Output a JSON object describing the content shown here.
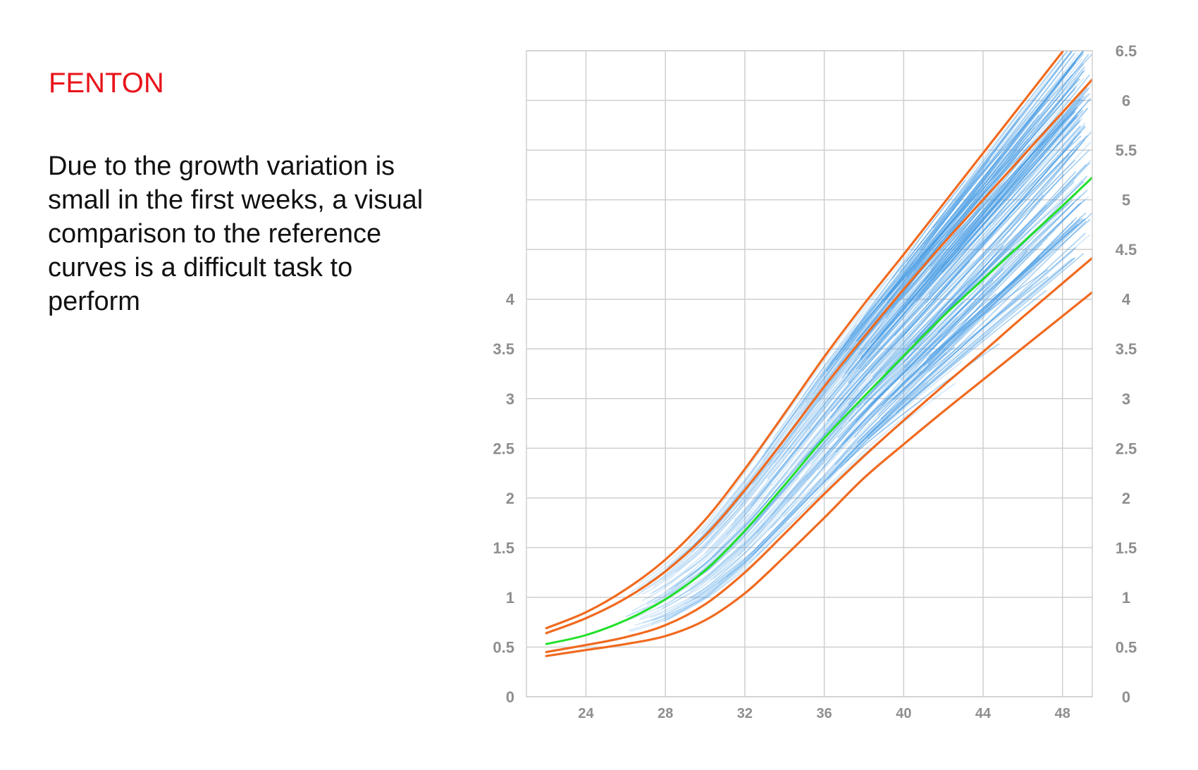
{
  "slide": {
    "title": "FENTON",
    "description": "Due to the growth variation is small in the first weeks, a visual comparison to the reference curves is a difficult task to perform"
  },
  "colors": {
    "title": "#e8141b",
    "reference_curve": "#f06a1f",
    "median_curve": "#22e02a",
    "patient_curves": "#3d97e3",
    "grid": "#cfcfcf",
    "tick_label": "#8e8e8e"
  },
  "chart_data": {
    "type": "line",
    "title": "",
    "xlabel": "",
    "ylabel": "",
    "xlim": [
      21,
      49.5
    ],
    "ylim": [
      0,
      6.5
    ],
    "x_ticks": [
      24,
      28,
      32,
      36,
      40,
      44,
      48
    ],
    "y_ticks_left": [
      0,
      0.5,
      1,
      1.5,
      2,
      2.5,
      3,
      3.5,
      4
    ],
    "y_ticks_right": [
      0,
      0.5,
      1,
      1.5,
      2,
      2.5,
      3,
      3.5,
      4,
      4.5,
      5,
      5.5,
      6,
      6.5
    ],
    "grid": true,
    "legend": "none",
    "x": [
      22,
      24,
      26,
      28,
      30,
      32,
      34,
      36,
      38,
      40,
      42,
      44,
      46,
      48,
      50
    ],
    "series": [
      {
        "role": "reference",
        "values": [
          0.69,
          0.85,
          1.08,
          1.38,
          1.78,
          2.29,
          2.85,
          3.42,
          3.95,
          4.45,
          4.96,
          5.47,
          5.98,
          6.49,
          7.0
        ]
      },
      {
        "role": "reference",
        "values": [
          0.64,
          0.79,
          0.99,
          1.26,
          1.62,
          2.08,
          2.59,
          3.12,
          3.62,
          4.1,
          4.56,
          5.0,
          5.44,
          5.88,
          6.32
        ]
      },
      {
        "role": "median",
        "values": [
          0.53,
          0.62,
          0.77,
          0.98,
          1.27,
          1.67,
          2.13,
          2.6,
          3.02,
          3.43,
          3.83,
          4.2,
          4.57,
          4.94,
          5.32
        ]
      },
      {
        "role": "reference",
        "values": [
          0.45,
          0.52,
          0.6,
          0.72,
          0.93,
          1.25,
          1.64,
          2.04,
          2.42,
          2.78,
          3.13,
          3.47,
          3.82,
          4.16,
          4.5
        ]
      },
      {
        "role": "reference",
        "values": [
          0.41,
          0.47,
          0.53,
          0.61,
          0.77,
          1.04,
          1.41,
          1.8,
          2.2,
          2.54,
          2.87,
          3.19,
          3.51,
          3.83,
          4.15
        ]
      }
    ]
  }
}
